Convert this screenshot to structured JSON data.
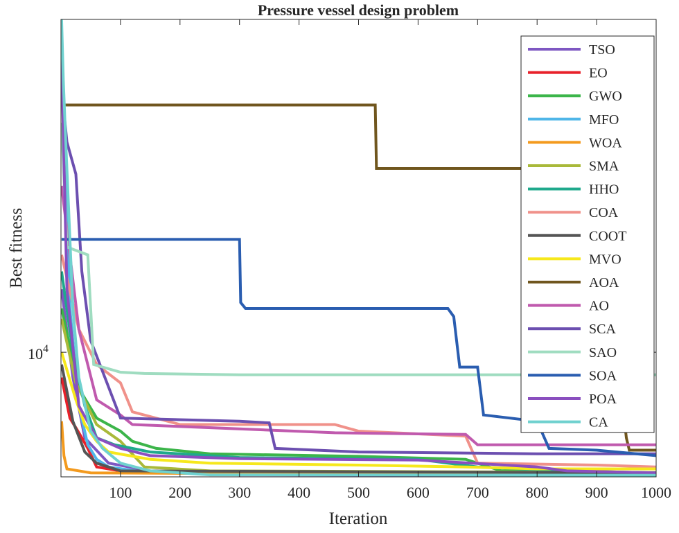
{
  "chart_data": {
    "type": "line",
    "title": "Pressure vessel design problem",
    "xlabel": "Iteration",
    "ylabel": "Best fitness",
    "y_scale": "log",
    "xlim": [
      0,
      1000
    ],
    "ylim": [
      5950,
      40000
    ],
    "x_ticks": [
      100,
      200,
      300,
      400,
      500,
      600,
      700,
      800,
      900,
      1000
    ],
    "x_tick_labels": [
      "100",
      "200",
      "300",
      "400",
      "500",
      "600",
      "700",
      "800",
      "900",
      "1000"
    ],
    "y_ticks": [
      10000
    ],
    "y_tick_label_base": "10",
    "y_tick_label_exp": "4",
    "legend_position": "top-right",
    "series": [
      {
        "name": "TSO",
        "color": "#7e57c2",
        "points": [
          [
            1,
            13000
          ],
          [
            20,
            9000
          ],
          [
            40,
            7000
          ],
          [
            80,
            6300
          ],
          [
            150,
            6100
          ],
          [
            300,
            6000
          ],
          [
            1000,
            5980
          ]
        ]
      },
      {
        "name": "EO",
        "color": "#e8202a",
        "points": [
          [
            1,
            9000
          ],
          [
            15,
            7600
          ],
          [
            25,
            7300
          ],
          [
            35,
            7000
          ],
          [
            45,
            6700
          ],
          [
            60,
            6200
          ],
          [
            120,
            6050
          ],
          [
            1000,
            6000
          ]
        ]
      },
      {
        "name": "GWO",
        "color": "#3cb54a",
        "points": [
          [
            1,
            12000
          ],
          [
            30,
            8600
          ],
          [
            60,
            7600
          ],
          [
            100,
            7200
          ],
          [
            120,
            6900
          ],
          [
            160,
            6700
          ],
          [
            250,
            6550
          ],
          [
            500,
            6480
          ],
          [
            680,
            6400
          ],
          [
            740,
            6100
          ],
          [
            1000,
            6050
          ]
        ]
      },
      {
        "name": "MFO",
        "color": "#4fb6e8",
        "points": [
          [
            1,
            25000
          ],
          [
            8,
            21000
          ],
          [
            15,
            12000
          ],
          [
            30,
            8000
          ],
          [
            45,
            6800
          ],
          [
            60,
            6400
          ],
          [
            80,
            6200
          ],
          [
            150,
            6050
          ],
          [
            1000,
            6000
          ]
        ]
      },
      {
        "name": "WOA",
        "color": "#f39a1e",
        "points": [
          [
            1,
            7500
          ],
          [
            5,
            6500
          ],
          [
            10,
            6150
          ],
          [
            50,
            6050
          ],
          [
            300,
            6030
          ],
          [
            1000,
            6020
          ]
        ]
      },
      {
        "name": "SMA",
        "color": "#a9b93a",
        "points": [
          [
            1,
            11500
          ],
          [
            25,
            8800
          ],
          [
            60,
            7400
          ],
          [
            100,
            6900
          ],
          [
            140,
            6200
          ],
          [
            250,
            6100
          ],
          [
            1000,
            6060
          ]
        ]
      },
      {
        "name": "HHO",
        "color": "#1fa98c",
        "points": [
          [
            1,
            14000
          ],
          [
            20,
            10000
          ],
          [
            40,
            8000
          ],
          [
            60,
            7000
          ],
          [
            90,
            6800
          ],
          [
            150,
            6600
          ],
          [
            300,
            6450
          ],
          [
            600,
            6400
          ],
          [
            700,
            6200
          ],
          [
            850,
            6100
          ],
          [
            1000,
            6050
          ]
        ]
      },
      {
        "name": "COA",
        "color": "#f0918a",
        "points": [
          [
            1,
            15000
          ],
          [
            30,
            11000
          ],
          [
            60,
            9500
          ],
          [
            100,
            8800
          ],
          [
            120,
            7800
          ],
          [
            200,
            7400
          ],
          [
            460,
            7400
          ],
          [
            500,
            7200
          ],
          [
            680,
            7050
          ],
          [
            700,
            6300
          ],
          [
            900,
            6250
          ],
          [
            1000,
            6200
          ]
        ]
      },
      {
        "name": "COOT",
        "color": "#555555",
        "points": [
          [
            1,
            9500
          ],
          [
            20,
            7500
          ],
          [
            40,
            6600
          ],
          [
            60,
            6300
          ],
          [
            100,
            6100
          ],
          [
            1000,
            6050
          ]
        ]
      },
      {
        "name": "MVO",
        "color": "#f6e81c",
        "points": [
          [
            1,
            10000
          ],
          [
            25,
            8200
          ],
          [
            40,
            7400
          ],
          [
            60,
            6900
          ],
          [
            80,
            6600
          ],
          [
            150,
            6400
          ],
          [
            250,
            6300
          ],
          [
            500,
            6250
          ],
          [
            680,
            6200
          ],
          [
            800,
            6150
          ],
          [
            1000,
            6150
          ]
        ]
      },
      {
        "name": "AOA",
        "color": "#70561e",
        "points": [
          [
            1,
            28000
          ],
          [
            528,
            28000
          ],
          [
            530,
            21500
          ],
          [
            900,
            21500
          ],
          [
            950,
            7000
          ],
          [
            955,
            6650
          ],
          [
            1000,
            6650
          ]
        ]
      },
      {
        "name": "AO",
        "color": "#c05aae",
        "points": [
          [
            1,
            20000
          ],
          [
            30,
            11000
          ],
          [
            60,
            8200
          ],
          [
            100,
            7700
          ],
          [
            120,
            7400
          ],
          [
            460,
            7150
          ],
          [
            680,
            7100
          ],
          [
            700,
            6800
          ],
          [
            1000,
            6800
          ]
        ]
      },
      {
        "name": "SCA",
        "color": "#6c4fb0",
        "points": [
          [
            1,
            30000
          ],
          [
            10,
            24000
          ],
          [
            25,
            21000
          ],
          [
            35,
            14000
          ],
          [
            50,
            10500
          ],
          [
            100,
            7600
          ],
          [
            300,
            7500
          ],
          [
            350,
            7450
          ],
          [
            360,
            6700
          ],
          [
            500,
            6600
          ],
          [
            800,
            6550
          ],
          [
            1000,
            6550
          ]
        ]
      },
      {
        "name": "SAO",
        "color": "#9fdcc0",
        "points": [
          [
            1,
            26000
          ],
          [
            10,
            15500
          ],
          [
            45,
            15000
          ],
          [
            55,
            9500
          ],
          [
            100,
            9200
          ],
          [
            140,
            9150
          ],
          [
            300,
            9100
          ],
          [
            1000,
            9100
          ]
        ]
      },
      {
        "name": "SOA",
        "color": "#2a5db0",
        "points": [
          [
            1,
            16000
          ],
          [
            300,
            16000
          ],
          [
            302,
            12300
          ],
          [
            310,
            12000
          ],
          [
            650,
            12000
          ],
          [
            660,
            11600
          ],
          [
            670,
            9400
          ],
          [
            700,
            9400
          ],
          [
            710,
            7700
          ],
          [
            800,
            7500
          ],
          [
            820,
            6700
          ],
          [
            900,
            6650
          ],
          [
            1000,
            6500
          ]
        ]
      },
      {
        "name": "POA",
        "color": "#8a4fbf",
        "points": [
          [
            1,
            34000
          ],
          [
            10,
            13000
          ],
          [
            30,
            8000
          ],
          [
            60,
            7000
          ],
          [
            100,
            6700
          ],
          [
            150,
            6500
          ],
          [
            300,
            6420
          ],
          [
            600,
            6380
          ],
          [
            800,
            6200
          ],
          [
            850,
            6100
          ],
          [
            1000,
            6050
          ]
        ]
      },
      {
        "name": "CA",
        "color": "#6fd1cf",
        "points": [
          [
            1,
            40000
          ],
          [
            4,
            31000
          ],
          [
            8,
            24000
          ],
          [
            20,
            12000
          ],
          [
            30,
            9000
          ],
          [
            50,
            7200
          ],
          [
            70,
            6700
          ],
          [
            100,
            6300
          ],
          [
            150,
            6100
          ],
          [
            250,
            6000
          ],
          [
            1000,
            5990
          ]
        ]
      }
    ]
  }
}
